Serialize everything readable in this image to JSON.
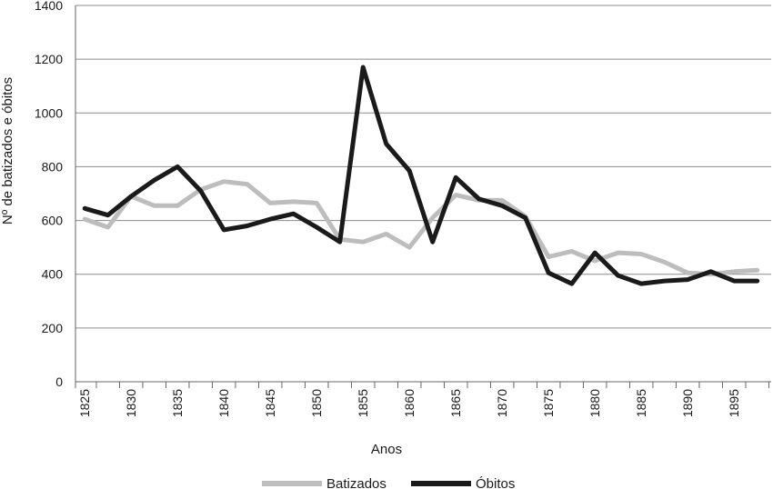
{
  "chart_data": {
    "type": "line",
    "xlabel": "Anos",
    "ylabel": "Nº de batizados e óbitos",
    "ylim": [
      0,
      1400
    ],
    "yticks": [
      0,
      200,
      400,
      600,
      800,
      1000,
      1200,
      1400
    ],
    "xlim": [
      1824,
      1899
    ],
    "xticks": [
      1825,
      1830,
      1835,
      1840,
      1845,
      1850,
      1855,
      1860,
      1865,
      1870,
      1875,
      1880,
      1885,
      1890,
      1895
    ],
    "grid": "horizontal",
    "legend_position": "bottom",
    "x": [
      1825,
      1827.5,
      1830,
      1832.5,
      1835,
      1837.5,
      1840,
      1842.5,
      1845,
      1847.5,
      1850,
      1852.5,
      1855,
      1857.5,
      1860,
      1862.5,
      1865,
      1867.5,
      1870,
      1872.5,
      1875,
      1877.5,
      1880,
      1882.5,
      1885,
      1887.5,
      1890,
      1892.5,
      1895,
      1897.5
    ],
    "series": [
      {
        "name": "Batizados",
        "color": "#bdbdbd",
        "values": [
          605,
          575,
          690,
          655,
          655,
          715,
          745,
          735,
          665,
          670,
          665,
          530,
          520,
          550,
          500,
          610,
          695,
          675,
          675,
          615,
          465,
          485,
          450,
          480,
          475,
          445,
          405,
          400,
          410,
          415
        ]
      },
      {
        "name": "Óbitos",
        "color": "#1a1a1a",
        "values": [
          645,
          620,
          690,
          750,
          800,
          710,
          565,
          580,
          605,
          625,
          575,
          520,
          1170,
          885,
          785,
          520,
          760,
          680,
          655,
          610,
          405,
          365,
          480,
          395,
          365,
          375,
          380,
          410,
          375,
          375
        ]
      }
    ]
  }
}
